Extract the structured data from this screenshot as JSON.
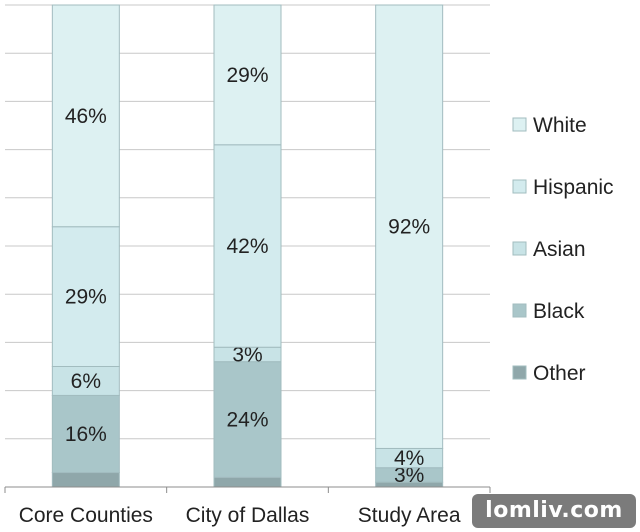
{
  "chart_data": {
    "type": "bar",
    "stacked": true,
    "percent_stacked": true,
    "categories": [
      "Core Counties",
      "City of Dallas",
      "Study Area"
    ],
    "series": [
      {
        "name": "Other",
        "values": [
          3,
          2,
          1
        ],
        "labels": [
          "",
          "",
          ""
        ],
        "color": "#8fa7aa"
      },
      {
        "name": "Black",
        "values": [
          16,
          24,
          3
        ],
        "labels": [
          "16%",
          "24%",
          "3%"
        ],
        "color": "#a9c6c9"
      },
      {
        "name": "Asian",
        "values": [
          6,
          3,
          4
        ],
        "labels": [
          "6%",
          "3%",
          "4%"
        ],
        "color": "#c8e3e6"
      },
      {
        "name": "Hispanic",
        "values": [
          29,
          42,
          0
        ],
        "labels": [
          "29%",
          "42%",
          ""
        ],
        "color": "#d3ebee"
      },
      {
        "name": "White",
        "values": [
          46,
          29,
          92
        ],
        "labels": [
          "46%",
          "29%",
          "92%"
        ],
        "color": "#ddf1f2"
      }
    ],
    "legend_order": [
      "White",
      "Hispanic",
      "Asian",
      "Black",
      "Other"
    ],
    "ylim": [
      0,
      100
    ],
    "gridlines": true,
    "legend_position": "right"
  },
  "watermark": "lomliv.com"
}
